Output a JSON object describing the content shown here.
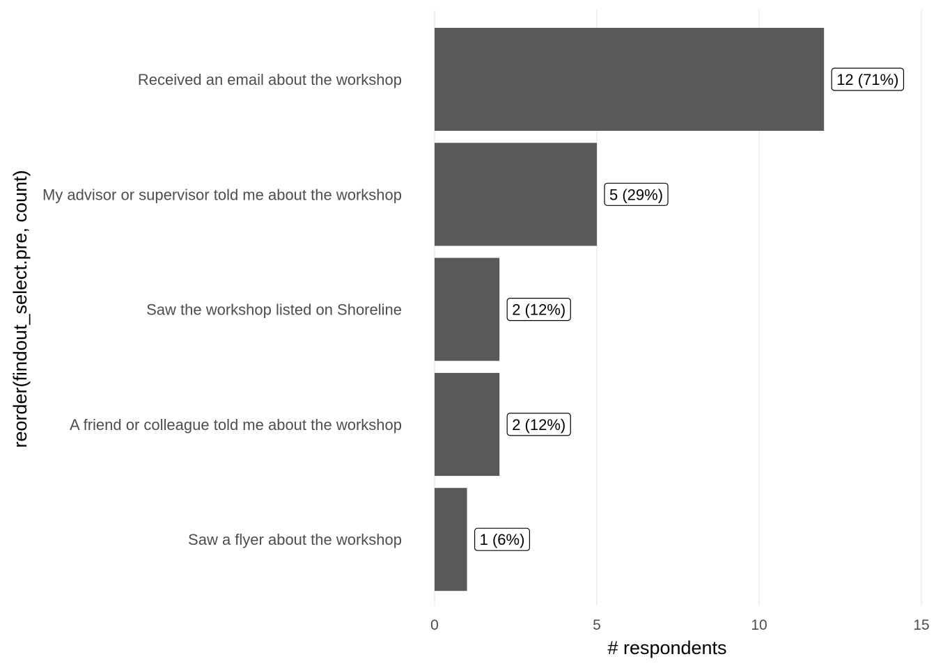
{
  "chart_data": {
    "type": "bar",
    "orientation": "horizontal",
    "categories": [
      "Received an email about the workshop",
      "My advisor or supervisor told me about the workshop",
      "Saw the workshop listed on Shoreline",
      "A friend or colleague told me about the workshop",
      "Saw a flyer about the workshop"
    ],
    "values": [
      12,
      5,
      2,
      2,
      1
    ],
    "data_labels": [
      "12 (71%)",
      "5 (29%)",
      "2 (12%)",
      "2 (12%)",
      "1 (6%)"
    ],
    "xlabel": "# respondents",
    "ylabel": "reorder(findout_select.pre, count)",
    "xlim": [
      0,
      15
    ],
    "x_ticks": [
      0,
      5,
      10,
      15
    ],
    "grid": "vertical major gridlines",
    "bar_color": "#595959",
    "gridline_color": "#ebebeb"
  }
}
